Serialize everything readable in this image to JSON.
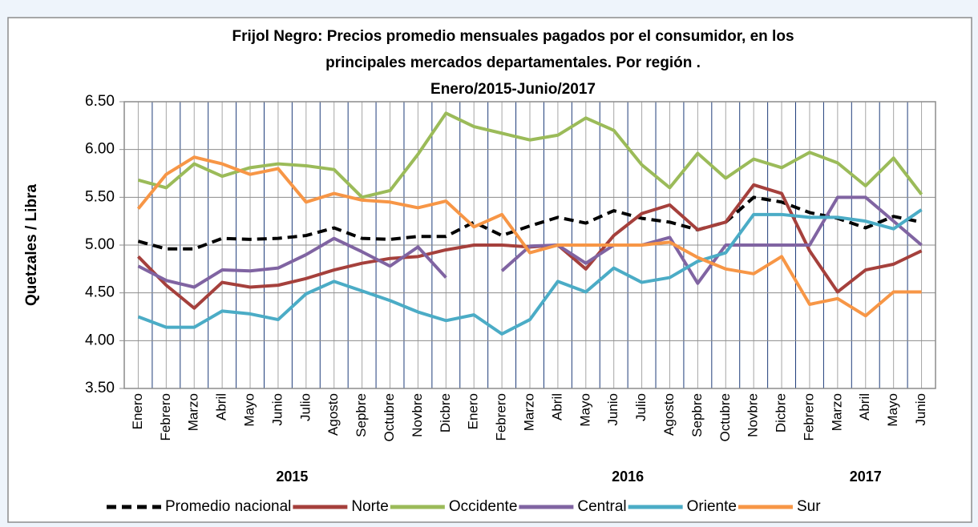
{
  "chart_data": {
    "type": "line",
    "title": [
      "Frijol Negro: Precios promedio mensuales pagados por el consumidor, en los",
      "principales mercados departamentales.  Por región .",
      "Enero/2015-Junio/2017"
    ],
    "y_label": "Quetzales / Libra",
    "categories": [
      "Enero",
      "Febrero",
      "Marzo",
      "Abril",
      "Mayo",
      "Junio",
      "Julio",
      "Agosto",
      "Sepbre",
      "Octubre",
      "Novbre",
      "Dicbre",
      "Enero",
      "Febrero",
      "Marzo",
      "Abril",
      "Mayo",
      "Junio",
      "Julio",
      "Agosto",
      "Sepbre",
      "Octubre",
      "Novbre",
      "Dicbre",
      "Febrero",
      "Marzo",
      "Abril",
      "Mayo",
      "Junio"
    ],
    "years": [
      "2015",
      "2016",
      "2017"
    ],
    "ylim": [
      3.5,
      6.5
    ],
    "yticks": [
      {
        "value": 3.5,
        "label": "3.50"
      },
      {
        "value": 4,
        "label": "4.00"
      },
      {
        "value": 4.5,
        "label": "4.50"
      },
      {
        "value": 5,
        "label": "5.00"
      },
      {
        "value": 5.5,
        "label": "5.50"
      },
      {
        "value": 6,
        "label": "6.00"
      },
      {
        "value": 6.5,
        "label": "6.50"
      }
    ],
    "grid": true,
    "legend": "bottom",
    "series": [
      {
        "name": "Promedio nacional",
        "color": "#000000",
        "dashed": true,
        "values": [
          5.04,
          4.96,
          4.96,
          5.07,
          5.06,
          5.07,
          5.1,
          5.18,
          5.07,
          5.06,
          5.09,
          5.09,
          5.24,
          5.1,
          5.2,
          5.29,
          5.23,
          5.36,
          5.28,
          5.24,
          5.16,
          5.24,
          5.5,
          5.45,
          5.34,
          5.28,
          5.18,
          5.3,
          5.24
        ]
      },
      {
        "name": "Norte",
        "color": "#a5403c",
        "values": [
          4.88,
          4.58,
          4.34,
          4.61,
          4.56,
          4.58,
          4.65,
          4.74,
          4.81,
          4.86,
          4.88,
          4.95,
          5.0,
          5.0,
          4.98,
          5.0,
          4.75,
          5.1,
          5.33,
          5.42,
          5.16,
          5.24,
          5.63,
          5.54,
          4.94,
          4.51,
          4.74,
          4.8,
          4.94
        ]
      },
      {
        "name": "Occidente",
        "color": "#9bbb59",
        "values": [
          5.68,
          5.6,
          5.85,
          5.72,
          5.81,
          5.85,
          5.83,
          5.79,
          5.5,
          5.57,
          5.95,
          6.38,
          6.24,
          6.17,
          6.1,
          6.15,
          6.33,
          6.2,
          5.84,
          5.6,
          5.96,
          5.7,
          5.9,
          5.81,
          5.97,
          5.86,
          5.62,
          5.91,
          5.53
        ]
      },
      {
        "name": "Central",
        "color": "#8064a2",
        "values": [
          4.78,
          4.63,
          4.56,
          4.74,
          4.73,
          4.76,
          4.9,
          5.07,
          4.93,
          4.78,
          4.98,
          4.66,
          null,
          4.73,
          4.99,
          5.0,
          4.81,
          5.0,
          5.0,
          5.08,
          4.6,
          5.0,
          5.0,
          5.0,
          5.0,
          5.5,
          5.5,
          5.25,
          5.0
        ]
      },
      {
        "name": "Oriente",
        "color": "#4bacc6",
        "values": [
          4.25,
          4.14,
          4.14,
          4.31,
          4.28,
          4.22,
          4.49,
          4.62,
          4.52,
          4.42,
          4.3,
          4.21,
          4.27,
          4.07,
          4.22,
          4.62,
          4.51,
          4.76,
          4.61,
          4.66,
          4.83,
          4.92,
          5.32,
          5.32,
          5.29,
          5.29,
          5.25,
          5.17,
          5.37
        ]
      },
      {
        "name": "Sur",
        "color": "#f79646",
        "values": [
          5.38,
          5.74,
          5.92,
          5.85,
          5.74,
          5.8,
          5.45,
          5.54,
          5.47,
          5.45,
          5.39,
          5.46,
          5.19,
          5.32,
          4.92,
          5.0,
          5.0,
          5.0,
          5.0,
          5.03,
          4.87,
          4.75,
          4.7,
          4.88,
          4.38,
          4.44,
          4.26,
          4.51,
          4.51
        ]
      }
    ]
  }
}
